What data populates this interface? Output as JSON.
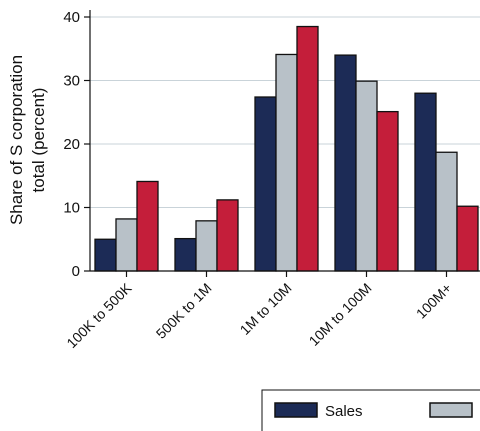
{
  "chart_data": {
    "type": "bar",
    "categories": [
      "100K to 500K",
      "500K to 1M",
      "1M to 10M",
      "10M to 100M",
      "100M+"
    ],
    "series": [
      {
        "name": "Sales",
        "color": "#1c2b56",
        "values": [
          5.0,
          5.1,
          27.4,
          34.0,
          28.0
        ]
      },
      {
        "color": "#b8c1c8",
        "values": [
          8.2,
          7.9,
          34.1,
          29.9,
          18.7
        ]
      },
      {
        "color": "#c41e3a",
        "values": [
          14.1,
          11.2,
          38.5,
          25.1,
          10.2
        ]
      }
    ],
    "ylabel_lines": [
      "Share of S corporation",
      "total (percent)"
    ],
    "ylim": [
      0,
      40
    ],
    "yticks": [
      0,
      10,
      20,
      30,
      40
    ],
    "grid": true,
    "gridline_color": "#c9d3d9",
    "legend": {
      "placement": "bottom-right",
      "entries": [
        {
          "label": "Sales",
          "color": "#1c2b56"
        },
        {
          "label": "",
          "color": "#b8c1c8"
        }
      ]
    }
  }
}
